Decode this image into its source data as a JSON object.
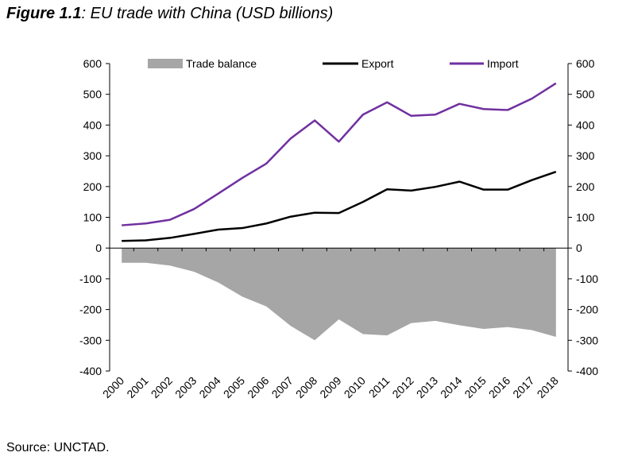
{
  "figure": {
    "label": "Figure 1.1",
    "caption": ": EU trade with China (USD billions)"
  },
  "source": "Source: UNCTAD.",
  "colors": {
    "trade_balance": "#a6a6a6",
    "export": "#000000",
    "import": "#7030a0"
  },
  "chart_data": {
    "type": "line",
    "title": "Figure 1.1: EU trade with China (USD billions)",
    "categories": [
      "2000",
      "2001",
      "2002",
      "2003",
      "2004",
      "2005",
      "2006",
      "2007",
      "2008",
      "2009",
      "2010",
      "2011",
      "2012",
      "2013",
      "2014",
      "2015",
      "2016",
      "2017",
      "2018"
    ],
    "series": [
      {
        "name": "Trade balance",
        "kind": "area",
        "values": [
          -48,
          -48,
          -57,
          -77,
          -112,
          -158,
          -190,
          -253,
          -300,
          -232,
          -280,
          -284,
          -244,
          -237,
          -251,
          -263,
          -257,
          -267,
          -289
        ]
      },
      {
        "name": "Export",
        "kind": "line",
        "values": [
          23,
          25,
          33,
          46,
          60,
          65,
          80,
          102,
          115,
          114,
          150,
          191,
          187,
          199,
          216,
          190,
          190,
          221,
          248
        ]
      },
      {
        "name": "Import",
        "kind": "line",
        "values": [
          74,
          80,
          92,
          127,
          177,
          228,
          275,
          356,
          415,
          346,
          434,
          474,
          430,
          434,
          469,
          452,
          449,
          486,
          536
        ]
      }
    ],
    "ylim": [
      -400,
      600
    ],
    "yticks": [
      600,
      500,
      400,
      300,
      200,
      100,
      0,
      -100,
      -200,
      -300,
      -400
    ],
    "ytick_labels": [
      "600",
      "500",
      "400",
      "300",
      "200",
      "100",
      "0",
      "-100",
      "-200",
      "-300",
      "-400"
    ],
    "y2ticks": [
      600,
      500,
      400,
      300,
      200,
      100,
      0,
      -100,
      -200,
      -300,
      -400
    ],
    "y2tick_labels": [
      "600",
      "500",
      "400",
      "300",
      "200",
      "100",
      "0",
      "-100",
      "-200",
      "-300",
      "-400"
    ],
    "legend": [
      "Trade balance",
      "Export",
      "Import"
    ],
    "legend_position": "top",
    "grid": false
  }
}
